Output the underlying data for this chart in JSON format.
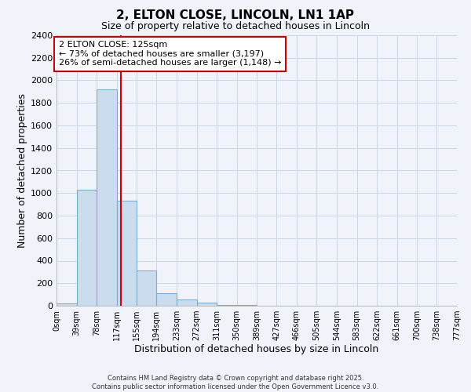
{
  "title1": "2, ELTON CLOSE, LINCOLN, LN1 1AP",
  "title2": "Size of property relative to detached houses in Lincoln",
  "xlabel": "Distribution of detached houses by size in Lincoln",
  "ylabel": "Number of detached properties",
  "bar_color": "#ccdcef",
  "bar_edge_color": "#7aadd4",
  "grid_color": "#c8d8e8",
  "background_color": "#f0f4fa",
  "plot_bg_color": "#f0f4fa",
  "bin_edges": [
    0,
    39,
    78,
    117,
    155,
    194,
    233,
    272,
    311,
    350,
    389,
    427,
    466,
    505,
    544,
    583,
    622,
    661,
    700,
    738,
    777
  ],
  "bar_heights": [
    20,
    1030,
    1920,
    930,
    310,
    110,
    55,
    30,
    10,
    5,
    0,
    0,
    0,
    0,
    0,
    0,
    0,
    0,
    0,
    0
  ],
  "property_size": 125,
  "red_line_color": "#cc0000",
  "annotation_line1": "2 ELTON CLOSE: 125sqm",
  "annotation_line2": "← 73% of detached houses are smaller (3,197)",
  "annotation_line3": "26% of semi-detached houses are larger (1,148) →",
  "annotation_box_color": "#ffffff",
  "annotation_box_edge": "#cc0000",
  "ylim": [
    0,
    2400
  ],
  "footer1": "Contains HM Land Registry data © Crown copyright and database right 2025.",
  "footer2": "Contains public sector information licensed under the Open Government Licence v3.0.",
  "tick_labels": [
    "0sqm",
    "39sqm",
    "78sqm",
    "117sqm",
    "155sqm",
    "194sqm",
    "233sqm",
    "272sqm",
    "311sqm",
    "350sqm",
    "389sqm",
    "427sqm",
    "466sqm",
    "505sqm",
    "544sqm",
    "583sqm",
    "622sqm",
    "661sqm",
    "700sqm",
    "738sqm",
    "777sqm"
  ]
}
